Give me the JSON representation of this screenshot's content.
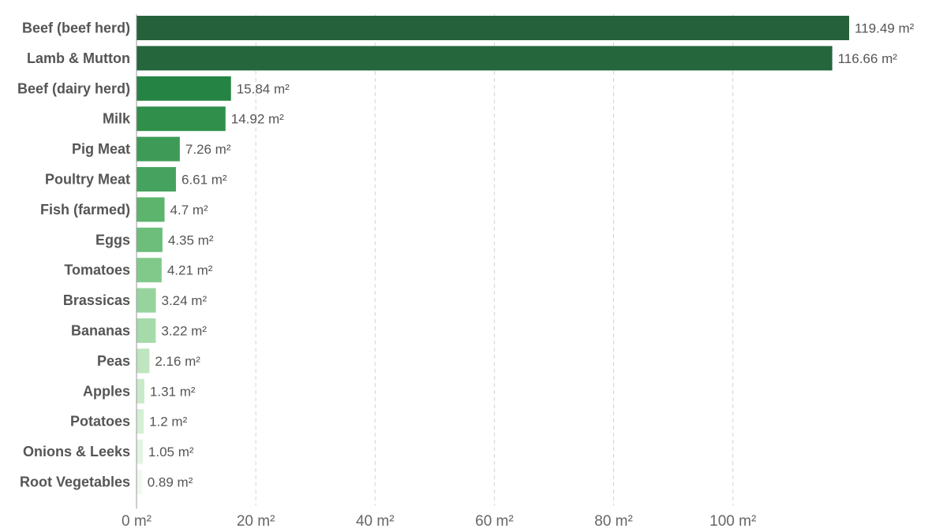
{
  "chart_data": {
    "type": "bar",
    "orientation": "horizontal",
    "title": "",
    "xlabel": "",
    "ylabel": "",
    "unit": "m²",
    "xlim": [
      0,
      120
    ],
    "x_ticks": [
      0,
      20,
      40,
      60,
      80,
      100
    ],
    "x_tick_labels": [
      "0 m²",
      "20 m²",
      "40 m²",
      "60 m²",
      "80 m²",
      "100 m²"
    ],
    "grid": true,
    "legend": false,
    "categories": [
      "Beef (beef herd)",
      "Lamb & Mutton",
      "Beef (dairy herd)",
      "Milk",
      "Pig Meat",
      "Poultry Meat",
      "Fish (farmed)",
      "Eggs",
      "Tomatoes",
      "Brassicas",
      "Bananas",
      "Peas",
      "Apples",
      "Potatoes",
      "Onions & Leeks",
      "Root Vegetables"
    ],
    "values": [
      119.49,
      116.66,
      15.84,
      14.92,
      7.26,
      6.61,
      4.7,
      4.35,
      4.21,
      3.24,
      3.22,
      2.16,
      1.31,
      1.2,
      1.05,
      0.89
    ],
    "value_labels": [
      "119.49 m²",
      "116.66 m²",
      "15.84 m²",
      "14.92 m²",
      "7.26 m²",
      "6.61 m²",
      "4.7 m²",
      "4.35 m²",
      "4.21 m²",
      "3.24 m²",
      "3.22 m²",
      "2.16 m²",
      "1.31 m²",
      "1.2 m²",
      "1.05 m²",
      "0.89 m²"
    ],
    "colors": [
      "#25623b",
      "#25663d",
      "#258344",
      "#2f8f4b",
      "#3d9b57",
      "#46a35f",
      "#5cb46d",
      "#6cbe7a",
      "#80c98b",
      "#96d39d",
      "#a5daa9",
      "#bde5bf",
      "#c9eac9",
      "#d5efd4",
      "#e3f4e2",
      "#f0f9ef"
    ]
  }
}
